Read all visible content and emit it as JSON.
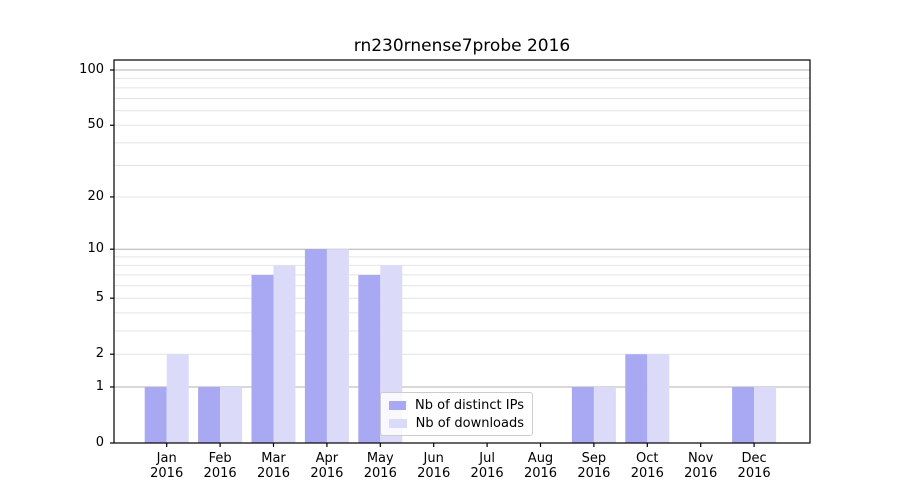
{
  "chart_data": {
    "type": "bar",
    "title": "rn230rnense7probe 2016",
    "categories": [
      "Jan",
      "Feb",
      "Mar",
      "Apr",
      "May",
      "Jun",
      "Jul",
      "Aug",
      "Sep",
      "Oct",
      "Nov",
      "Dec"
    ],
    "category_year": "2016",
    "series": [
      {
        "name": "Nb of distinct IPs",
        "color": "#a9a9f3",
        "values": [
          1,
          1,
          7,
          10,
          7,
          0,
          0,
          0,
          1,
          2,
          0,
          1
        ]
      },
      {
        "name": "Nb of downloads",
        "color": "#dbdbf9",
        "values": [
          2,
          1,
          8,
          10,
          8,
          0,
          0,
          0,
          1,
          2,
          0,
          1
        ]
      }
    ],
    "yscale": "log1p",
    "ylabel": "",
    "xlabel": "",
    "yticks": [
      0,
      1,
      2,
      5,
      10,
      20,
      50,
      100
    ],
    "ylim": [
      0,
      113
    ],
    "grid": {
      "major_values": [
        1,
        10,
        100
      ],
      "minor_values": [
        2,
        3,
        4,
        5,
        6,
        7,
        8,
        9,
        20,
        30,
        40,
        50,
        60,
        70,
        80,
        90
      ],
      "major_color": "#b0b0b0",
      "minor_color": "#e4e4e4"
    },
    "legend_position": "lower center"
  }
}
